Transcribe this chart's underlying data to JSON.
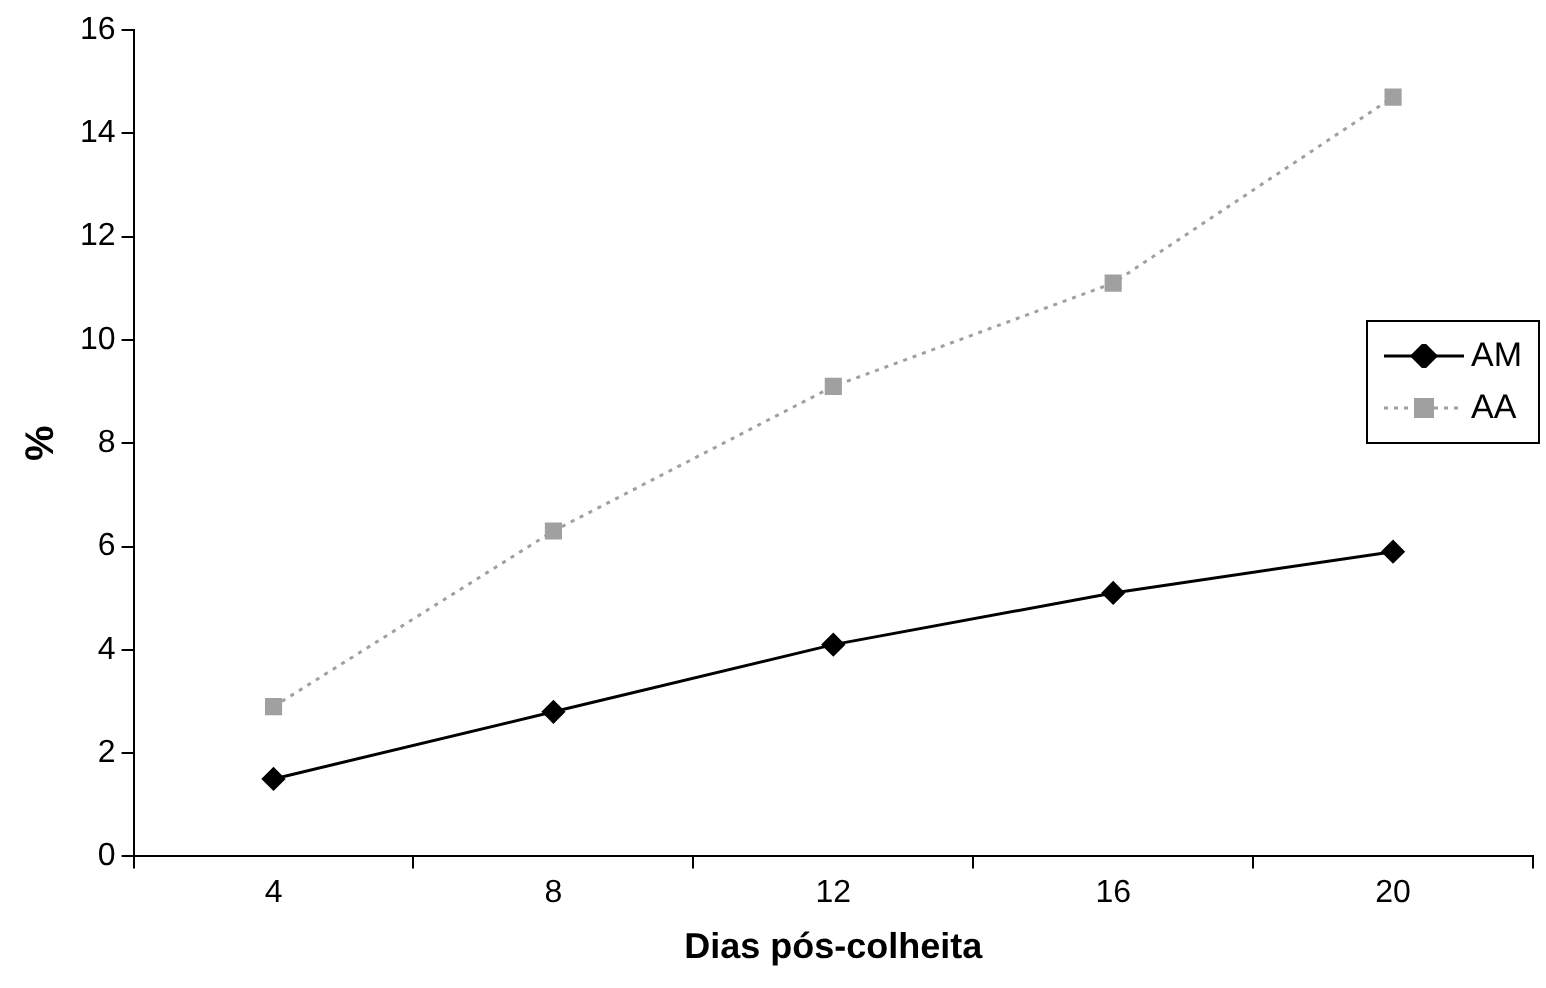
{
  "chart_data": {
    "type": "line",
    "xlabel": "Dias pós-colheita",
    "ylabel": "%",
    "categories": [
      "4",
      "8",
      "12",
      "16",
      "20"
    ],
    "series": [
      {
        "name": "AM",
        "color": "#000000",
        "marker": "diamond",
        "line_style": "solid",
        "values": [
          1.5,
          2.8,
          4.1,
          5.1,
          5.9
        ]
      },
      {
        "name": "AA",
        "color": "#a0a0a0",
        "marker": "square",
        "line_style": "dotted",
        "values": [
          2.9,
          6.3,
          9.1,
          11.1,
          14.7
        ]
      }
    ],
    "ylim": [
      0,
      16
    ],
    "yticks": [
      0,
      2,
      4,
      6,
      8,
      10,
      12,
      14,
      16
    ],
    "grid": false,
    "legend": "right"
  }
}
